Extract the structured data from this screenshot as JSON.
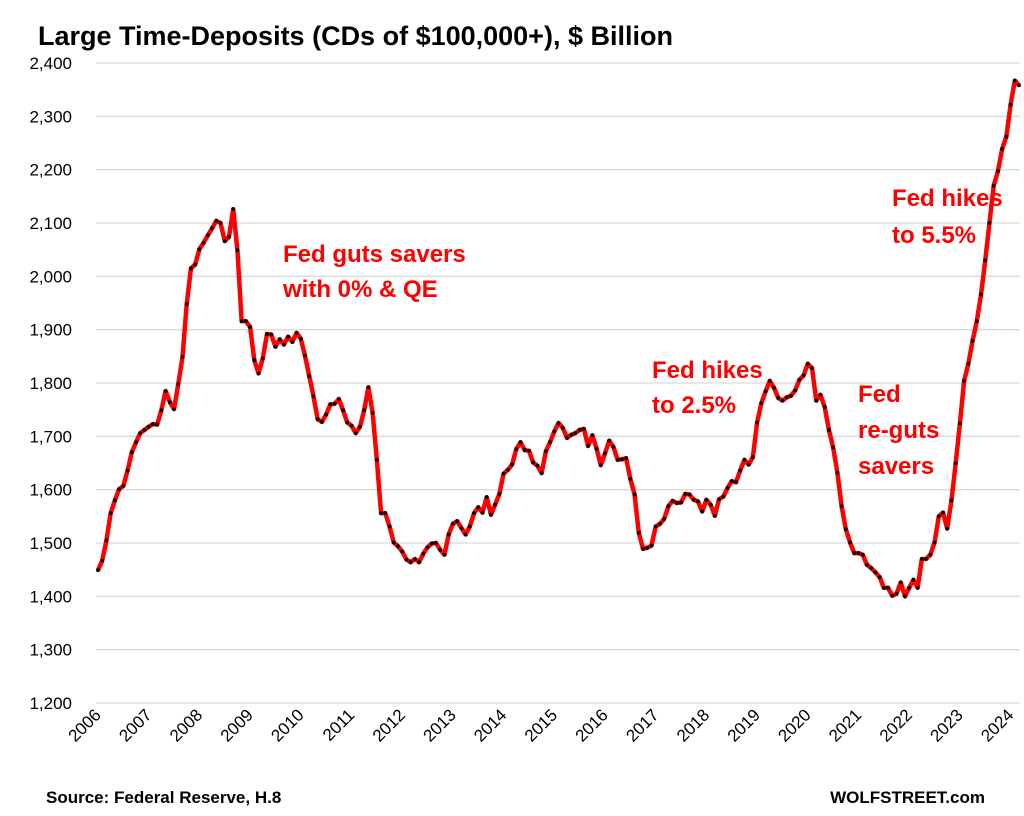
{
  "chart_data": {
    "type": "line",
    "title": "Large Time-Deposits (CDs of $100,000+), $ Billion",
    "xlabel": "",
    "ylabel": "",
    "ylim": [
      1200,
      2400
    ],
    "yticks": [
      "1,200",
      "1,300",
      "1,400",
      "1,500",
      "1,600",
      "1,700",
      "1,800",
      "1,900",
      "2,000",
      "2,100",
      "2,200",
      "2,300",
      "2,400"
    ],
    "xticks": [
      "2006",
      "2007",
      "2008",
      "2009",
      "2010",
      "2011",
      "2012",
      "2013",
      "2014",
      "2015",
      "2016",
      "2017",
      "2018",
      "2019",
      "2020",
      "2021",
      "2022",
      "2023",
      "2024"
    ],
    "grid": "horizontal",
    "line_color": "#ff0000",
    "marker_color": "#000000",
    "annotations": [
      {
        "lines": [
          "Fed guts savers",
          "with 0% & QE"
        ]
      },
      {
        "lines": [
          "Fed hikes",
          "to 2.5%"
        ]
      },
      {
        "lines": [
          "Fed",
          "re-guts",
          "savers"
        ]
      },
      {
        "lines": [
          "Fed hikes",
          "to 5.5%"
        ]
      }
    ],
    "annotation_color": "#ff0000",
    "series": [
      {
        "values_by_year": {
          "2006": [
            1449,
            1467,
            1505,
            1556,
            1580,
            1601,
            1607,
            1636,
            1670,
            1689,
            1706,
            1712
          ],
          "2007": [
            1718,
            1723,
            1722,
            1749,
            1785,
            1764,
            1751,
            1798,
            1849,
            1948,
            2015,
            2022
          ],
          "2008": [
            2051,
            2063,
            2077,
            2090,
            2104,
            2100,
            2066,
            2074,
            2126,
            2049,
            1916,
            1916
          ],
          "2009": [
            1905,
            1843,
            1818,
            1846,
            1892,
            1891,
            1868,
            1882,
            1872,
            1887,
            1877,
            1894
          ],
          "2010": [
            1883,
            1851,
            1813,
            1775,
            1732,
            1727,
            1741,
            1760,
            1761,
            1770,
            1749,
            1726
          ],
          "2011": [
            1720,
            1706,
            1718,
            1749,
            1792,
            1744,
            1656,
            1556,
            1556,
            1531,
            1501,
            1494
          ],
          "2012": [
            1484,
            1469,
            1464,
            1470,
            1464,
            1480,
            1492,
            1499,
            1500,
            1487,
            1478,
            1516
          ],
          "2013": [
            1536,
            1541,
            1528,
            1516,
            1531,
            1556,
            1567,
            1557,
            1586,
            1553,
            1572,
            1592
          ],
          "2014": [
            1630,
            1637,
            1647,
            1676,
            1689,
            1674,
            1673,
            1651,
            1645,
            1631,
            1672,
            1689
          ],
          "2015": [
            1709,
            1725,
            1716,
            1697,
            1703,
            1706,
            1712,
            1714,
            1682,
            1702,
            1677,
            1646
          ],
          "2016": [
            1668,
            1692,
            1680,
            1656,
            1657,
            1659,
            1620,
            1591,
            1519,
            1489,
            1491,
            1495
          ],
          "2017": [
            1531,
            1536,
            1545,
            1569,
            1579,
            1575,
            1576,
            1592,
            1591,
            1581,
            1578,
            1559
          ],
          "2018": [
            1581,
            1572,
            1551,
            1582,
            1587,
            1603,
            1616,
            1614,
            1636,
            1656,
            1647,
            1661
          ],
          "2019": [
            1726,
            1762,
            1784,
            1804,
            1791,
            1772,
            1767,
            1773,
            1776,
            1786,
            1806,
            1814
          ],
          "2020": [
            1836,
            1828,
            1767,
            1778,
            1755,
            1712,
            1679,
            1632,
            1569,
            1526,
            1501,
            1481
          ],
          "2021": [
            1481,
            1478,
            1459,
            1453,
            1445,
            1436,
            1416,
            1416,
            1401,
            1405,
            1426,
            1400
          ],
          "2022": [
            1416,
            1431,
            1416,
            1470,
            1470,
            1478,
            1501,
            1550,
            1557,
            1527,
            1580,
            1649
          ],
          "2023": [
            1724,
            1804,
            1836,
            1879,
            1916,
            1966,
            2030,
            2100,
            2170,
            2197,
            2239,
            2262
          ],
          "2024": [
            2322,
            2367,
            2358
          ]
        }
      }
    ]
  },
  "footer": {
    "source": "Source: Federal Reserve, H.8",
    "brand": "WOLFSTREET.com"
  }
}
